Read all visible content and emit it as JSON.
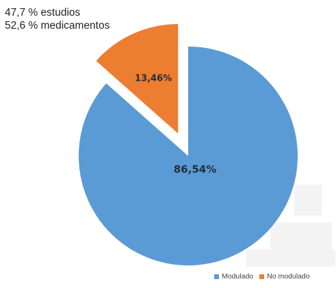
{
  "notes": [
    "47,7 % estudios",
    "52,6 % medicamentos"
  ],
  "chart_data": {
    "type": "pie",
    "title": "",
    "slices": [
      {
        "name": "Modulado",
        "value": 86.54,
        "label": "86,54%",
        "color": "#5b9bd5",
        "exploded": false
      },
      {
        "name": "No modulado",
        "value": 13.46,
        "label": "13,46%",
        "color": "#ed7d31",
        "exploded": true
      }
    ],
    "legend": {
      "position": "bottom-right",
      "items": [
        "Modulado",
        "No modulado"
      ]
    }
  }
}
